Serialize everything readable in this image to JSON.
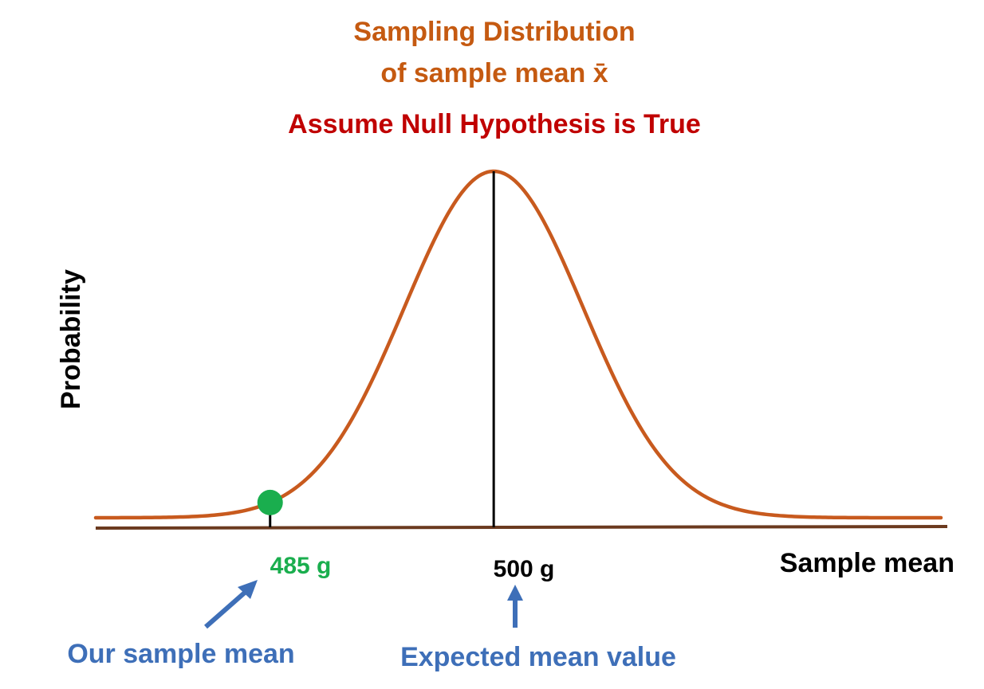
{
  "title": {
    "line1": "Sampling Distribution",
    "line2": "of sample mean x̄",
    "subtitle": "Assume Null Hypothesis is True"
  },
  "axes": {
    "ylabel": "Probability",
    "xlabel": "Sample mean"
  },
  "markers": {
    "sample_value_label": "485 g",
    "expected_value_label": "500 g"
  },
  "annotations": {
    "sample_caption": "Our sample mean",
    "expected_caption": "Expected mean value"
  },
  "chart_data": {
    "type": "line",
    "title": "Sampling Distribution of sample mean x̄",
    "subtitle": "Assume Null Hypothesis is True",
    "xlabel": "Sample mean",
    "ylabel": "Probability",
    "curve": "normal",
    "mean": 500,
    "std_dev": 6,
    "xlim": [
      473.3,
      530
    ],
    "highlighted_points": [
      {
        "x": 485,
        "label": "485 g",
        "annotation": "Our sample mean"
      },
      {
        "x": 500,
        "label": "500 g",
        "annotation": "Expected mean value"
      }
    ],
    "grid": false,
    "legend": "none"
  },
  "colors": {
    "title": "#c55a11",
    "subtitle": "#c00000",
    "curve": "#c85a1e",
    "axis": "#6b3a1f",
    "point": "#1aae4e",
    "sample_label": "#1aae4e",
    "annotation": "#3e6fb8",
    "text": "#000000"
  }
}
